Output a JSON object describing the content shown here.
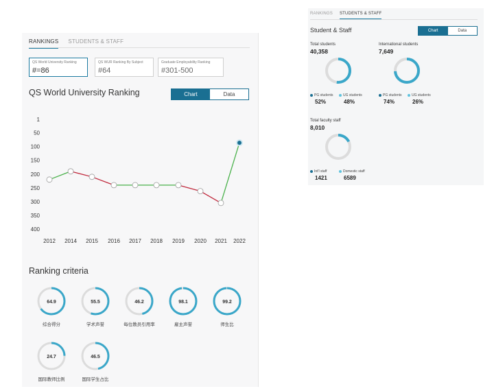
{
  "colors": {
    "accent": "#1a6f92",
    "ring": "#3aa7c9",
    "ring_bg": "#dcdcdc",
    "line_red": "#c0283c",
    "line_green": "#49b14a",
    "dark_dot": "#1a6f92",
    "light_dot": "#5fc3dd"
  },
  "left": {
    "tabs": [
      {
        "label": "RANKINGS"
      },
      {
        "label": "STUDENTS & STAFF"
      }
    ],
    "rank_boxes": [
      {
        "label": "QS World University Ranking",
        "value": "#=86"
      },
      {
        "label": "QS WUR Ranking By Subject",
        "value": "#64"
      },
      {
        "label": "Graduate Employability Ranking",
        "value": "#301-500"
      }
    ],
    "title": "QS World University Ranking",
    "toggle": {
      "chart": "Chart",
      "data": "Data"
    },
    "criteria_title": "Ranking criteria",
    "criteria": [
      {
        "value": "64.9",
        "label": "综合得分"
      },
      {
        "value": "55.5",
        "label": "学术声誉"
      },
      {
        "value": "46.2",
        "label": "每位教员引用率"
      },
      {
        "value": "98.1",
        "label": "雇主声誉"
      },
      {
        "value": "99.2",
        "label": "师生比"
      },
      {
        "value": "24.7",
        "label": "国际教师比例"
      },
      {
        "value": "46.5",
        "label": "国际学生占比"
      }
    ]
  },
  "chart_data": {
    "type": "line",
    "x": [
      "2012",
      "2014",
      "2015",
      "2016",
      "2017",
      "2018",
      "2019",
      "2020",
      "2021",
      "2022"
    ],
    "y": [
      220,
      190,
      210,
      240,
      240,
      240,
      240,
      262,
      305,
      86
    ],
    "yticks": [
      "1",
      "50",
      "100",
      "150",
      "200",
      "250",
      "300",
      "350",
      "400"
    ],
    "ylim": [
      1,
      400
    ],
    "y_reversed": true,
    "segment_colors": "red when rank worsens, green when rank improves"
  },
  "right": {
    "tabs": [
      {
        "label": "RANKINGS"
      },
      {
        "label": "STUDENTS & STAFF"
      }
    ],
    "title": "Student & Staff",
    "toggle": {
      "chart": "Chart",
      "data": "Data"
    },
    "total_students": {
      "label": "Total students",
      "value": "40,358",
      "fraction": 0.52,
      "legend": [
        {
          "label": "PG students",
          "value": "52%"
        },
        {
          "label": "UG students",
          "value": "48%"
        }
      ]
    },
    "intl_students": {
      "label": "International students",
      "value": "7,649",
      "fraction": 0.74,
      "legend": [
        {
          "label": "PG students",
          "value": "74%"
        },
        {
          "label": "UG students",
          "value": "26%"
        }
      ]
    },
    "faculty": {
      "label": "Total faculty staff",
      "value": "8,010",
      "fraction": 0.177,
      "legend": [
        {
          "label": "Int'l staff",
          "value": "1421"
        },
        {
          "label": "Domestic staff",
          "value": "6589"
        }
      ]
    }
  }
}
